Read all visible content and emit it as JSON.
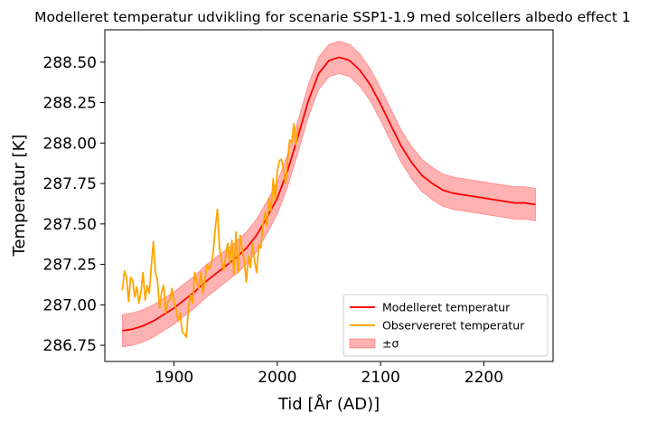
{
  "chart_data": {
    "type": "line",
    "title": "Modelleret temperatur udvikling for scenarie SSP1-1.9 med solcellers albedo effect 1",
    "xlabel": "Tid [År (AD)]",
    "ylabel": "Temperatur [K]",
    "xlim": [
      1833,
      2267
    ],
    "ylim": [
      286.65,
      288.7
    ],
    "x_ticks": [
      1900,
      2000,
      2100,
      2200
    ],
    "x_tick_labels": [
      "1900",
      "2000",
      "2100",
      "2200"
    ],
    "y_ticks": [
      286.75,
      287.0,
      287.25,
      287.5,
      287.75,
      288.0,
      288.25,
      288.5
    ],
    "y_tick_labels": [
      "286.75",
      "287.00",
      "287.25",
      "287.50",
      "287.75",
      "288.00",
      "288.25",
      "288.50"
    ],
    "grid": false,
    "legend_position": "lower-right",
    "sigma": 0.1,
    "series": [
      {
        "name": "Modelleret temperatur",
        "color": "#ff0000",
        "x": [
          1850,
          1860,
          1870,
          1880,
          1890,
          1900,
          1910,
          1920,
          1930,
          1940,
          1950,
          1960,
          1970,
          1980,
          1990,
          2000,
          2010,
          2020,
          2030,
          2040,
          2050,
          2060,
          2070,
          2080,
          2090,
          2100,
          2110,
          2120,
          2130,
          2140,
          2150,
          2160,
          2170,
          2180,
          2190,
          2200,
          2210,
          2220,
          2230,
          2240,
          2250
        ],
        "values": [
          286.84,
          286.85,
          286.87,
          286.9,
          286.94,
          286.98,
          287.03,
          287.08,
          287.14,
          287.19,
          287.24,
          287.29,
          287.35,
          287.43,
          287.54,
          287.66,
          287.83,
          288.04,
          288.26,
          288.43,
          288.51,
          288.53,
          288.51,
          288.45,
          288.36,
          288.24,
          288.11,
          287.98,
          287.88,
          287.8,
          287.75,
          287.71,
          287.69,
          287.68,
          287.67,
          287.66,
          287.65,
          287.64,
          287.63,
          287.63,
          287.62
        ]
      },
      {
        "name": "Observereret temperatur",
        "color": "#ffa500",
        "x": [
          1850,
          1852,
          1854,
          1856,
          1858,
          1860,
          1862,
          1864,
          1866,
          1868,
          1870,
          1872,
          1874,
          1876,
          1878,
          1880,
          1882,
          1884,
          1886,
          1888,
          1890,
          1892,
          1894,
          1896,
          1898,
          1900,
          1902,
          1904,
          1906,
          1908,
          1910,
          1912,
          1914,
          1916,
          1918,
          1920,
          1922,
          1924,
          1926,
          1928,
          1930,
          1932,
          1934,
          1936,
          1938,
          1940,
          1942,
          1944,
          1946,
          1948,
          1950,
          1952,
          1954,
          1956,
          1958,
          1960,
          1962,
          1964,
          1966,
          1968,
          1970,
          1972,
          1974,
          1976,
          1978,
          1980,
          1982,
          1984,
          1986,
          1988,
          1990,
          1992,
          1994,
          1996,
          1998,
          2000,
          2002,
          2004,
          2006,
          2008,
          2010,
          2012,
          2014,
          2016,
          2018,
          2020
        ],
        "values": [
          287.09,
          287.21,
          287.17,
          287.02,
          287.17,
          287.15,
          287.05,
          287.11,
          287.01,
          287.08,
          287.2,
          287.03,
          287.12,
          287.07,
          287.24,
          287.39,
          287.2,
          287.15,
          286.98,
          287.08,
          287.12,
          286.95,
          287.02,
          287.03,
          287.1,
          287.02,
          286.97,
          286.9,
          286.95,
          286.83,
          286.82,
          286.8,
          286.99,
          287.06,
          287.01,
          287.2,
          287.15,
          287.1,
          287.2,
          287.07,
          287.16,
          287.25,
          287.22,
          287.25,
          287.33,
          287.48,
          287.59,
          287.35,
          287.27,
          287.21,
          287.3,
          287.38,
          287.26,
          287.4,
          287.19,
          287.45,
          287.2,
          287.43,
          287.35,
          287.27,
          287.14,
          287.3,
          287.23,
          287.38,
          287.27,
          287.2,
          287.37,
          287.35,
          287.49,
          287.57,
          287.49,
          287.66,
          287.58,
          287.78,
          287.65,
          287.83,
          287.89,
          287.9,
          287.83,
          287.75,
          287.9,
          288.02,
          288.0,
          288.12,
          287.99,
          288.1
        ]
      }
    ],
    "band_label": "±σ",
    "band_color": "#ff0000"
  }
}
